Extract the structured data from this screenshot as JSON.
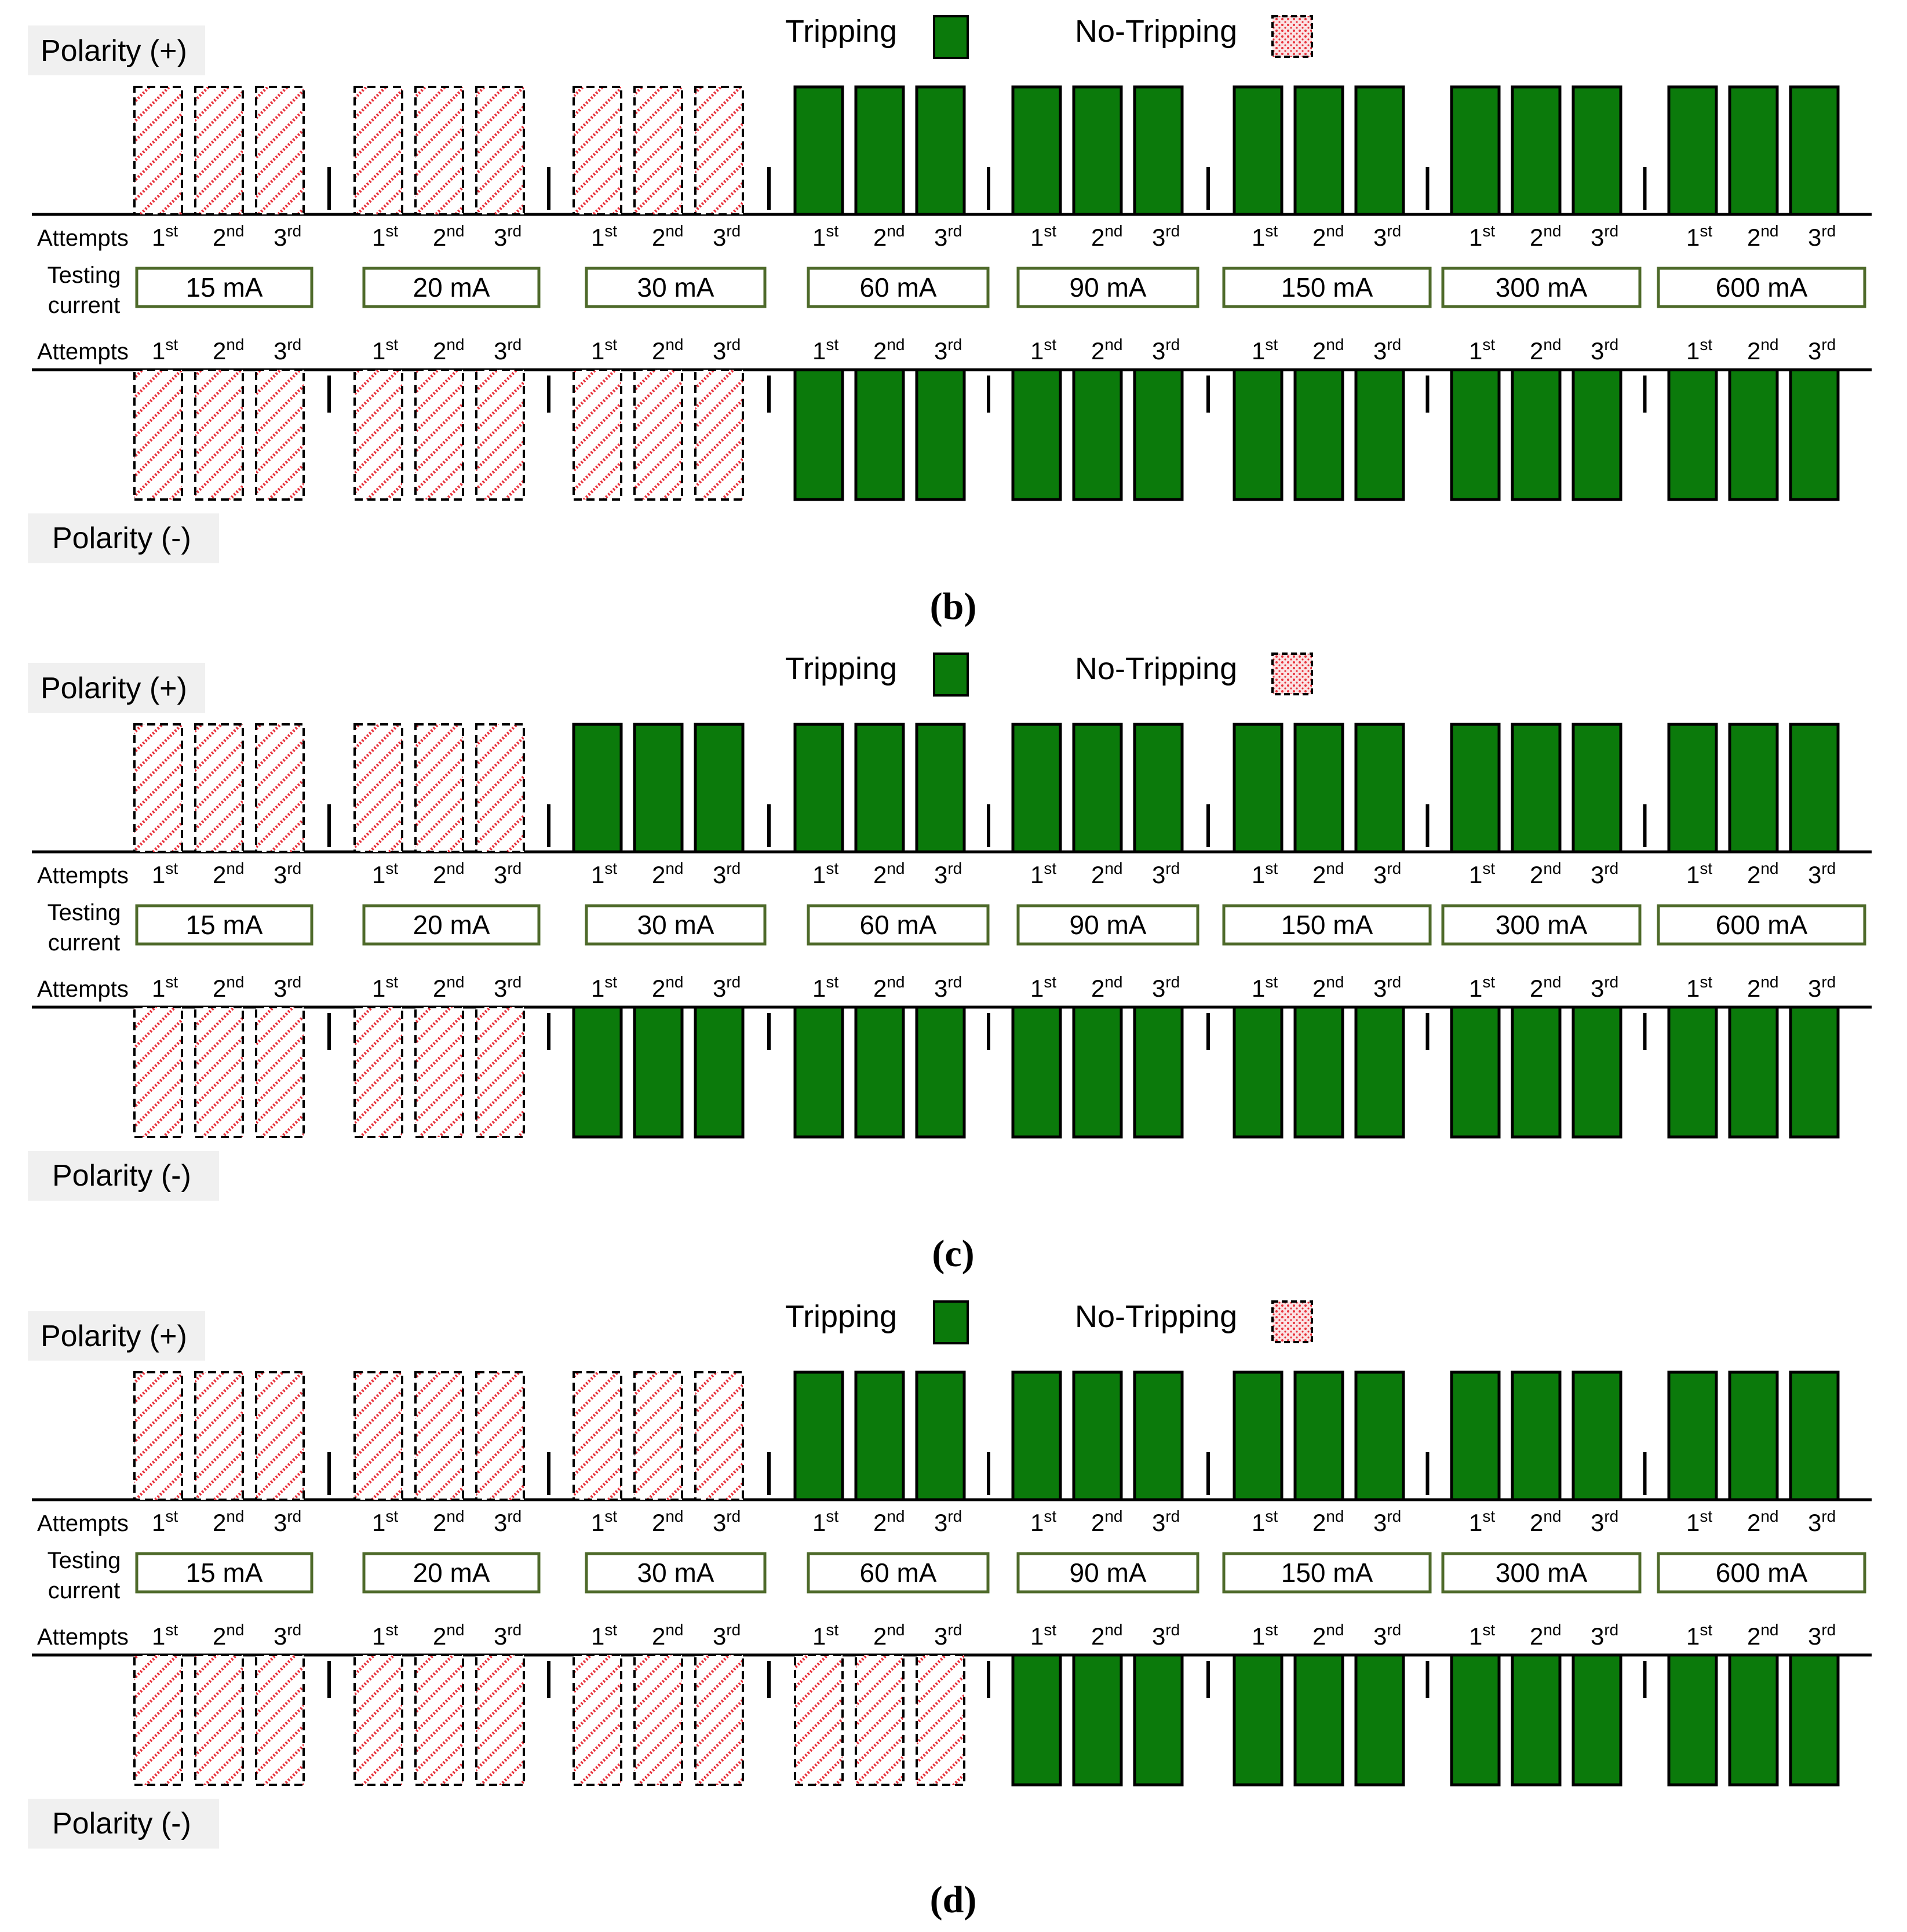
{
  "legend": {
    "trip_label": "Tripping",
    "notrip_label": "No-Tripping",
    "trip_color": "#0b7a0b",
    "notrip_color": "#e8323c"
  },
  "labels": {
    "polarity_pos": "Polarity (+)",
    "polarity_neg": "Polarity (-)",
    "attempts": "Attempts",
    "testing": "Testing",
    "current": "current",
    "ordinals": [
      {
        "base": "1",
        "sup": "st"
      },
      {
        "base": "2",
        "sup": "nd"
      },
      {
        "base": "3",
        "sup": "rd"
      }
    ]
  },
  "currents": [
    "15 mA",
    "20 mA",
    "30 mA",
    "60 mA",
    "90 mA",
    "150 mA",
    "300 mA",
    "600 mA"
  ],
  "panels": [
    {
      "caption": "b",
      "positive": [
        "No-Tripping",
        "No-Tripping",
        "No-Tripping",
        "Tripping",
        "Tripping",
        "Tripping",
        "Tripping",
        "Tripping"
      ],
      "negative": [
        "No-Tripping",
        "No-Tripping",
        "No-Tripping",
        "Tripping",
        "Tripping",
        "Tripping",
        "Tripping",
        "Tripping"
      ]
    },
    {
      "caption": "c",
      "positive": [
        "No-Tripping",
        "No-Tripping",
        "Tripping",
        "Tripping",
        "Tripping",
        "Tripping",
        "Tripping",
        "Tripping"
      ],
      "negative": [
        "No-Tripping",
        "No-Tripping",
        "Tripping",
        "Tripping",
        "Tripping",
        "Tripping",
        "Tripping",
        "Tripping"
      ]
    },
    {
      "caption": "d",
      "positive": [
        "No-Tripping",
        "No-Tripping",
        "No-Tripping",
        "Tripping",
        "Tripping",
        "Tripping",
        "Tripping",
        "Tripping"
      ],
      "negative": [
        "No-Tripping",
        "No-Tripping",
        "No-Tripping",
        "No-Tripping",
        "Tripping",
        "Tripping",
        "Tripping",
        "Tripping"
      ]
    }
  ]
}
